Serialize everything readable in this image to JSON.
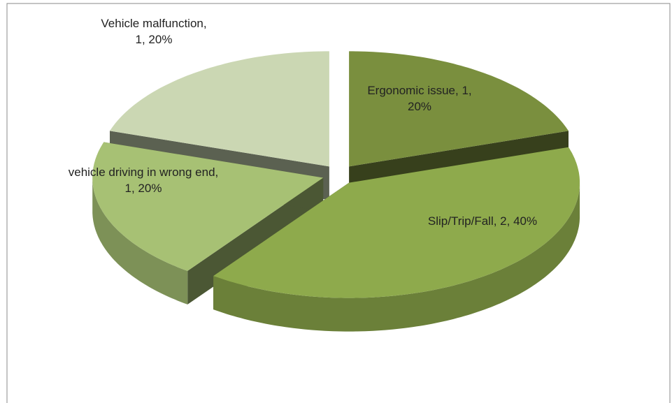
{
  "chart_data": {
    "type": "pie3d",
    "values": [
      1,
      2,
      1,
      1
    ],
    "value_labels": [
      "Ergonomic issue, 1, 20%",
      "Slip/Trip/Fall, 2, 40%",
      "vehicle driving in wrong end, 1, 20%",
      "Vehicle malfunction, 1, 20%"
    ],
    "colors": [
      "#7a8f3e",
      "#8eaa4c",
      "#a7c174",
      "#cbd7b3"
    ]
  }
}
